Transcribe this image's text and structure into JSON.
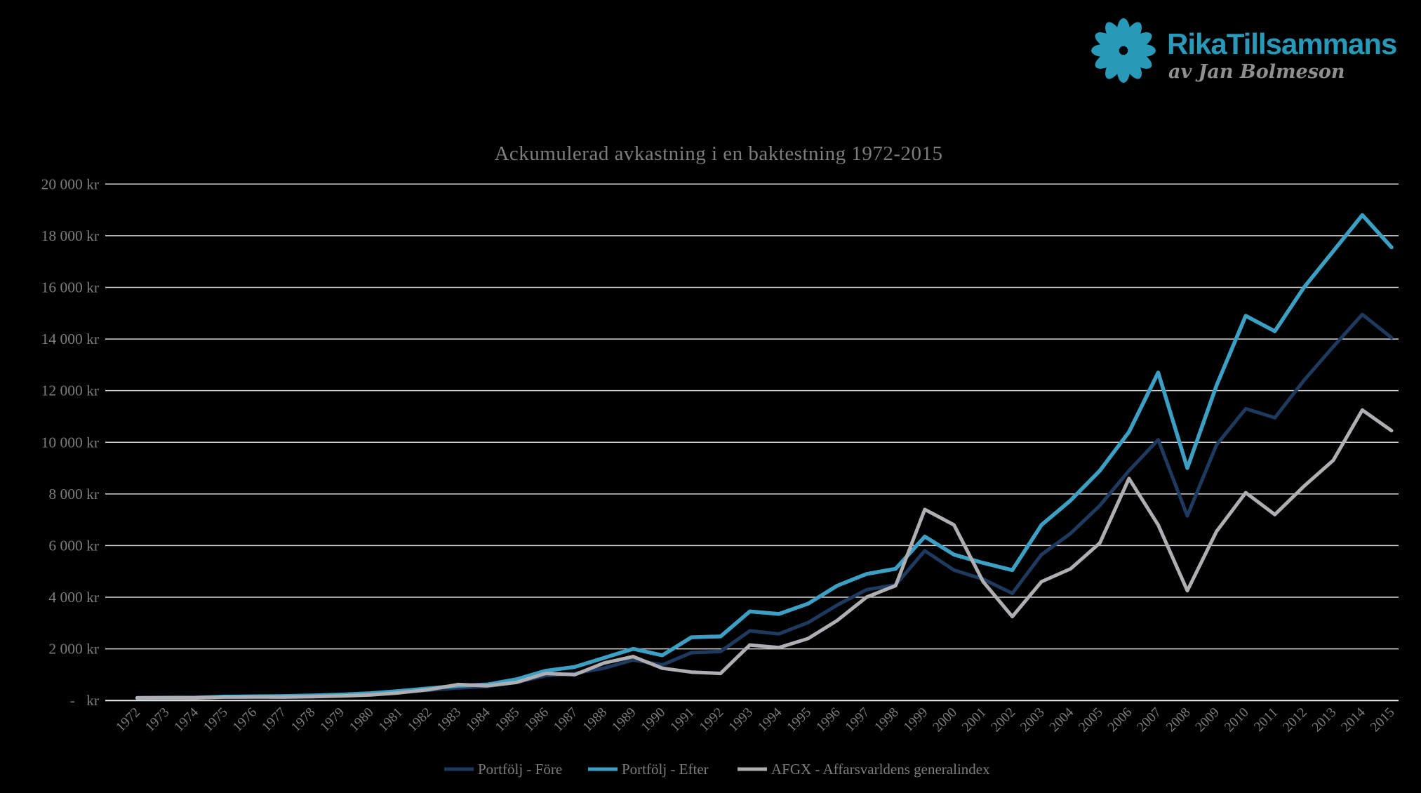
{
  "page": {
    "background": "#000000"
  },
  "logo": {
    "brand": "RikaTillsammans",
    "tagline": "av Jan Bolmeson",
    "brand_color": "#2899B8",
    "tagline_color": "#8F8F8F",
    "flower_color": "#2899B8",
    "flower_icon": "flower-icon"
  },
  "chart_data": {
    "type": "line",
    "title": "Ackumulerad avkastning i en baktestning 1972-2015",
    "title_color": "#7D7D7D",
    "text_color": "#7D7D7D",
    "grid_color": "#D6D6D6",
    "axis_line_color": "#F0F0F0",
    "grid": true,
    "legend_position": "bottom",
    "ylim": [
      0,
      20000
    ],
    "ytick_step": 2000,
    "ytick_labels": [
      "-   kr",
      "2 000 kr",
      "4 000 kr",
      "6 000 kr",
      "8 000 kr",
      "10 000 kr",
      "12 000 kr",
      "14 000 kr",
      "16 000 kr",
      "18 000 kr",
      "20 000 kr"
    ],
    "x": [
      1972,
      1973,
      1974,
      1975,
      1976,
      1977,
      1978,
      1979,
      1980,
      1981,
      1982,
      1983,
      1984,
      1985,
      1986,
      1987,
      1988,
      1989,
      1990,
      1991,
      1992,
      1993,
      1994,
      1995,
      1996,
      1997,
      1998,
      1999,
      2000,
      2001,
      2002,
      2003,
      2004,
      2005,
      2006,
      2007,
      2008,
      2009,
      2010,
      2011,
      2012,
      2013,
      2014,
      2015
    ],
    "series": [
      {
        "name": "Portfölj - Före",
        "color": "#1E3A5E",
        "stroke_width": 5,
        "values": [
          100,
          105,
          108,
          140,
          148,
          155,
          175,
          205,
          245,
          320,
          400,
          490,
          540,
          700,
          960,
          1050,
          1250,
          1570,
          1380,
          1850,
          1900,
          2700,
          2580,
          3020,
          3700,
          4290,
          4480,
          5800,
          5050,
          4700,
          4150,
          5650,
          6470,
          7550,
          8900,
          10100,
          7150,
          9900,
          11300,
          10950,
          12400,
          13700,
          14950,
          14050
        ]
      },
      {
        "name": "Portfölj - Efter",
        "color": "#3BA0C4",
        "stroke_width": 5.5,
        "values": [
          100,
          110,
          115,
          150,
          160,
          170,
          195,
          230,
          280,
          370,
          470,
          570,
          620,
          820,
          1150,
          1300,
          1650,
          2000,
          1750,
          2450,
          2480,
          3450,
          3350,
          3750,
          4450,
          4900,
          5100,
          6350,
          5650,
          5330,
          5050,
          6800,
          7750,
          8900,
          10400,
          12700,
          9000,
          12200,
          14900,
          14300,
          16000,
          17400,
          18800,
          17550
        ]
      },
      {
        "name": "AFGX - Affarsvarldens generalindex",
        "color": "#AFAEB2",
        "stroke_width": 5,
        "values": [
          100,
          105,
          100,
          130,
          135,
          130,
          150,
          175,
          215,
          300,
          420,
          620,
          570,
          700,
          1050,
          1000,
          1450,
          1700,
          1250,
          1100,
          1050,
          2150,
          2050,
          2400,
          3100,
          4000,
          4450,
          7400,
          6800,
          4600,
          3250,
          4600,
          5100,
          6100,
          8600,
          6800,
          4250,
          6550,
          8050,
          7200,
          8300,
          9300,
          11250,
          10450
        ]
      }
    ]
  }
}
